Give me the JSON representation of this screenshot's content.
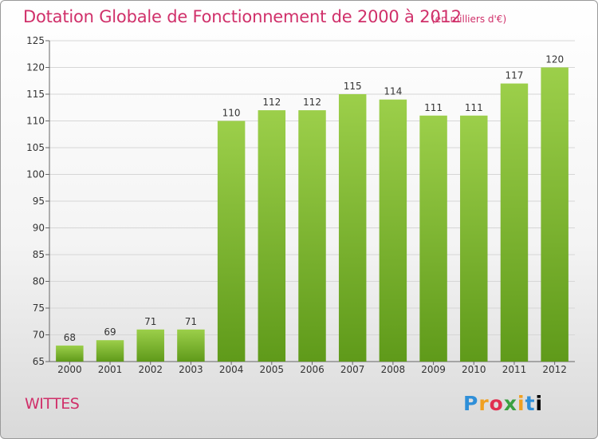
{
  "page": {
    "title": "Dotation Globale de Fonctionnement de 2000 à 2012",
    "unit_note": "(en milliers d'€)",
    "commune": "WITTES",
    "logo_text": "Proxiti",
    "colors": {
      "title": "#d0306a",
      "bar_top": "#9ccf4a",
      "bar_bottom": "#5f9a1a"
    }
  },
  "chart_data": {
    "type": "bar",
    "title": "Dotation Globale de Fonctionnement de 2000 à 2012",
    "categories": [
      "2000",
      "2001",
      "2002",
      "2003",
      "2004",
      "2005",
      "2006",
      "2007",
      "2008",
      "2009",
      "2010",
      "2011",
      "2012"
    ],
    "values": [
      68,
      69,
      71,
      71,
      110,
      112,
      112,
      115,
      114,
      111,
      111,
      117,
      120
    ],
    "ylim": [
      65,
      125
    ],
    "yticks": [
      65,
      70,
      75,
      80,
      85,
      90,
      95,
      100,
      105,
      110,
      115,
      120,
      125
    ],
    "grid": true,
    "xlabel": "",
    "ylabel": ""
  }
}
